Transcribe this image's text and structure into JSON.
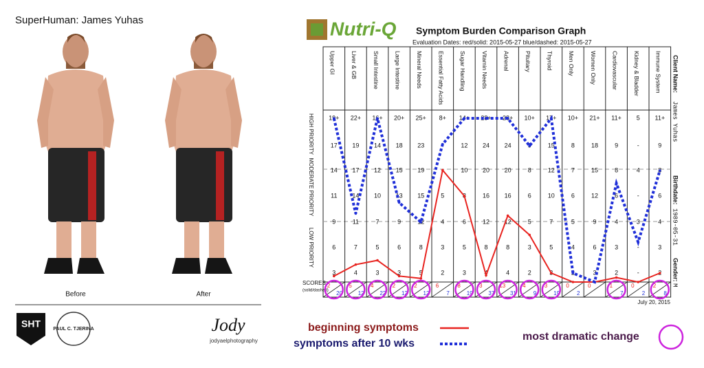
{
  "photo_panel": {
    "title": "SuperHuman: James Yuhas",
    "before": "Before",
    "after": "After",
    "logo_left": "SHT",
    "logo_middle": "PAUL C. TJERINA",
    "signature": "Jody",
    "signature_sub": "jodyaelphotography"
  },
  "brand": "Nutri-Q",
  "client": {
    "name_label": "Client Name:",
    "name": "James Yuhas",
    "birthdate_label": "Birthdate:",
    "birthdate": "1989-05-31",
    "gender_label": "Gender:",
    "gender": "M"
  },
  "report_date": "July 20, 2015",
  "chart_data": {
    "type": "line",
    "title": "Symptom Burden Comparison Graph",
    "subtitle": "Evaluation Dates:   red/solid: 2015-05-27   blue/dashed: 2015-05-27",
    "categories": [
      "Upper GI",
      "Liver & GB",
      "Small Intestine",
      "Large Intestine",
      "Mineral Needs",
      "Essential Fatty Acids",
      "Sugar Handling",
      "Vitamin Needs",
      "Adrenal",
      "Pituitary",
      "Thyroid",
      "Men Only",
      "Women Only",
      "Cardiovascular",
      "Kidney & Bladder",
      "Immune System"
    ],
    "priority_labels": [
      "HIGH PRIORITY",
      "MODERATE PRIORITY",
      "LOW PRIORITY"
    ],
    "scores_label": "SCORES",
    "scores_sublabel": "(solid/dashed)",
    "column_scales": [
      [
        {
          "value": 19,
          "label": "19+"
        },
        17,
        14,
        11,
        9,
        6,
        3
      ],
      [
        {
          "value": 22,
          "label": "22+"
        },
        19,
        17,
        14,
        11,
        7,
        4
      ],
      [
        {
          "value": 16,
          "label": "16+"
        },
        14,
        12,
        10,
        7,
        5,
        3
      ],
      [
        {
          "value": 20,
          "label": "20+"
        },
        18,
        15,
        13,
        9,
        6,
        3
      ],
      [
        {
          "value": 25,
          "label": "25+"
        },
        23,
        19,
        15,
        12,
        8,
        5
      ],
      [
        {
          "value": 8,
          "label": "8+"
        },
        "-",
        "-",
        5,
        4,
        3,
        2
      ],
      [
        {
          "value": 14,
          "label": "14+"
        },
        12,
        10,
        8,
        6,
        5,
        3
      ],
      [
        {
          "value": 28,
          "label": "28+"
        },
        24,
        20,
        16,
        12,
        8,
        4
      ],
      [
        {
          "value": 28,
          "label": "28+"
        },
        24,
        20,
        16,
        12,
        8,
        4
      ],
      [
        {
          "value": 10,
          "label": "10+"
        },
        9,
        8,
        6,
        5,
        3,
        2
      ],
      [
        {
          "value": 17,
          "label": "17+"
        },
        15,
        12,
        10,
        7,
        5,
        3
      ],
      [
        {
          "value": 10,
          "label": "10+"
        },
        8,
        7,
        6,
        5,
        4,
        2
      ],
      [
        {
          "value": 21,
          "label": "21+"
        },
        18,
        15,
        12,
        9,
        6,
        3
      ],
      [
        {
          "value": 11,
          "label": "11+"
        },
        9,
        8,
        6,
        4,
        3,
        2
      ],
      [
        5,
        "-",
        4,
        "-",
        3,
        "-",
        "-"
      ],
      [
        {
          "value": 11,
          "label": "11+"
        },
        9,
        8,
        6,
        4,
        3,
        2
      ]
    ],
    "series": [
      {
        "name": "beginning symptoms",
        "color": "#e8231f",
        "style": "solid",
        "values": [
          2,
          5,
          4,
          2,
          2,
          6,
          8,
          3,
          13,
          4,
          3,
          0,
          0,
          1,
          0,
          2
        ]
      },
      {
        "name": "symptoms after 10 wks",
        "color": "#1f2fd8",
        "style": "dotted",
        "values": [
          20,
          12,
          22,
          12,
          12,
          7,
          19,
          37,
          31,
          9,
          19,
          2,
          0,
          7,
          2,
          8
        ],
        "value_labels": [
          "20",
          "12",
          "22",
          "12",
          "12",
          "7",
          "19",
          "37",
          "31",
          "9",
          "19",
          "2",
          null,
          "7",
          "2",
          "8"
        ]
      }
    ],
    "highlight": {
      "label": "most dramatic change",
      "color": "#cc22dd",
      "columns": [
        true,
        true,
        true,
        true,
        true,
        false,
        true,
        true,
        true,
        true,
        true,
        false,
        false,
        true,
        false,
        true
      ]
    }
  }
}
